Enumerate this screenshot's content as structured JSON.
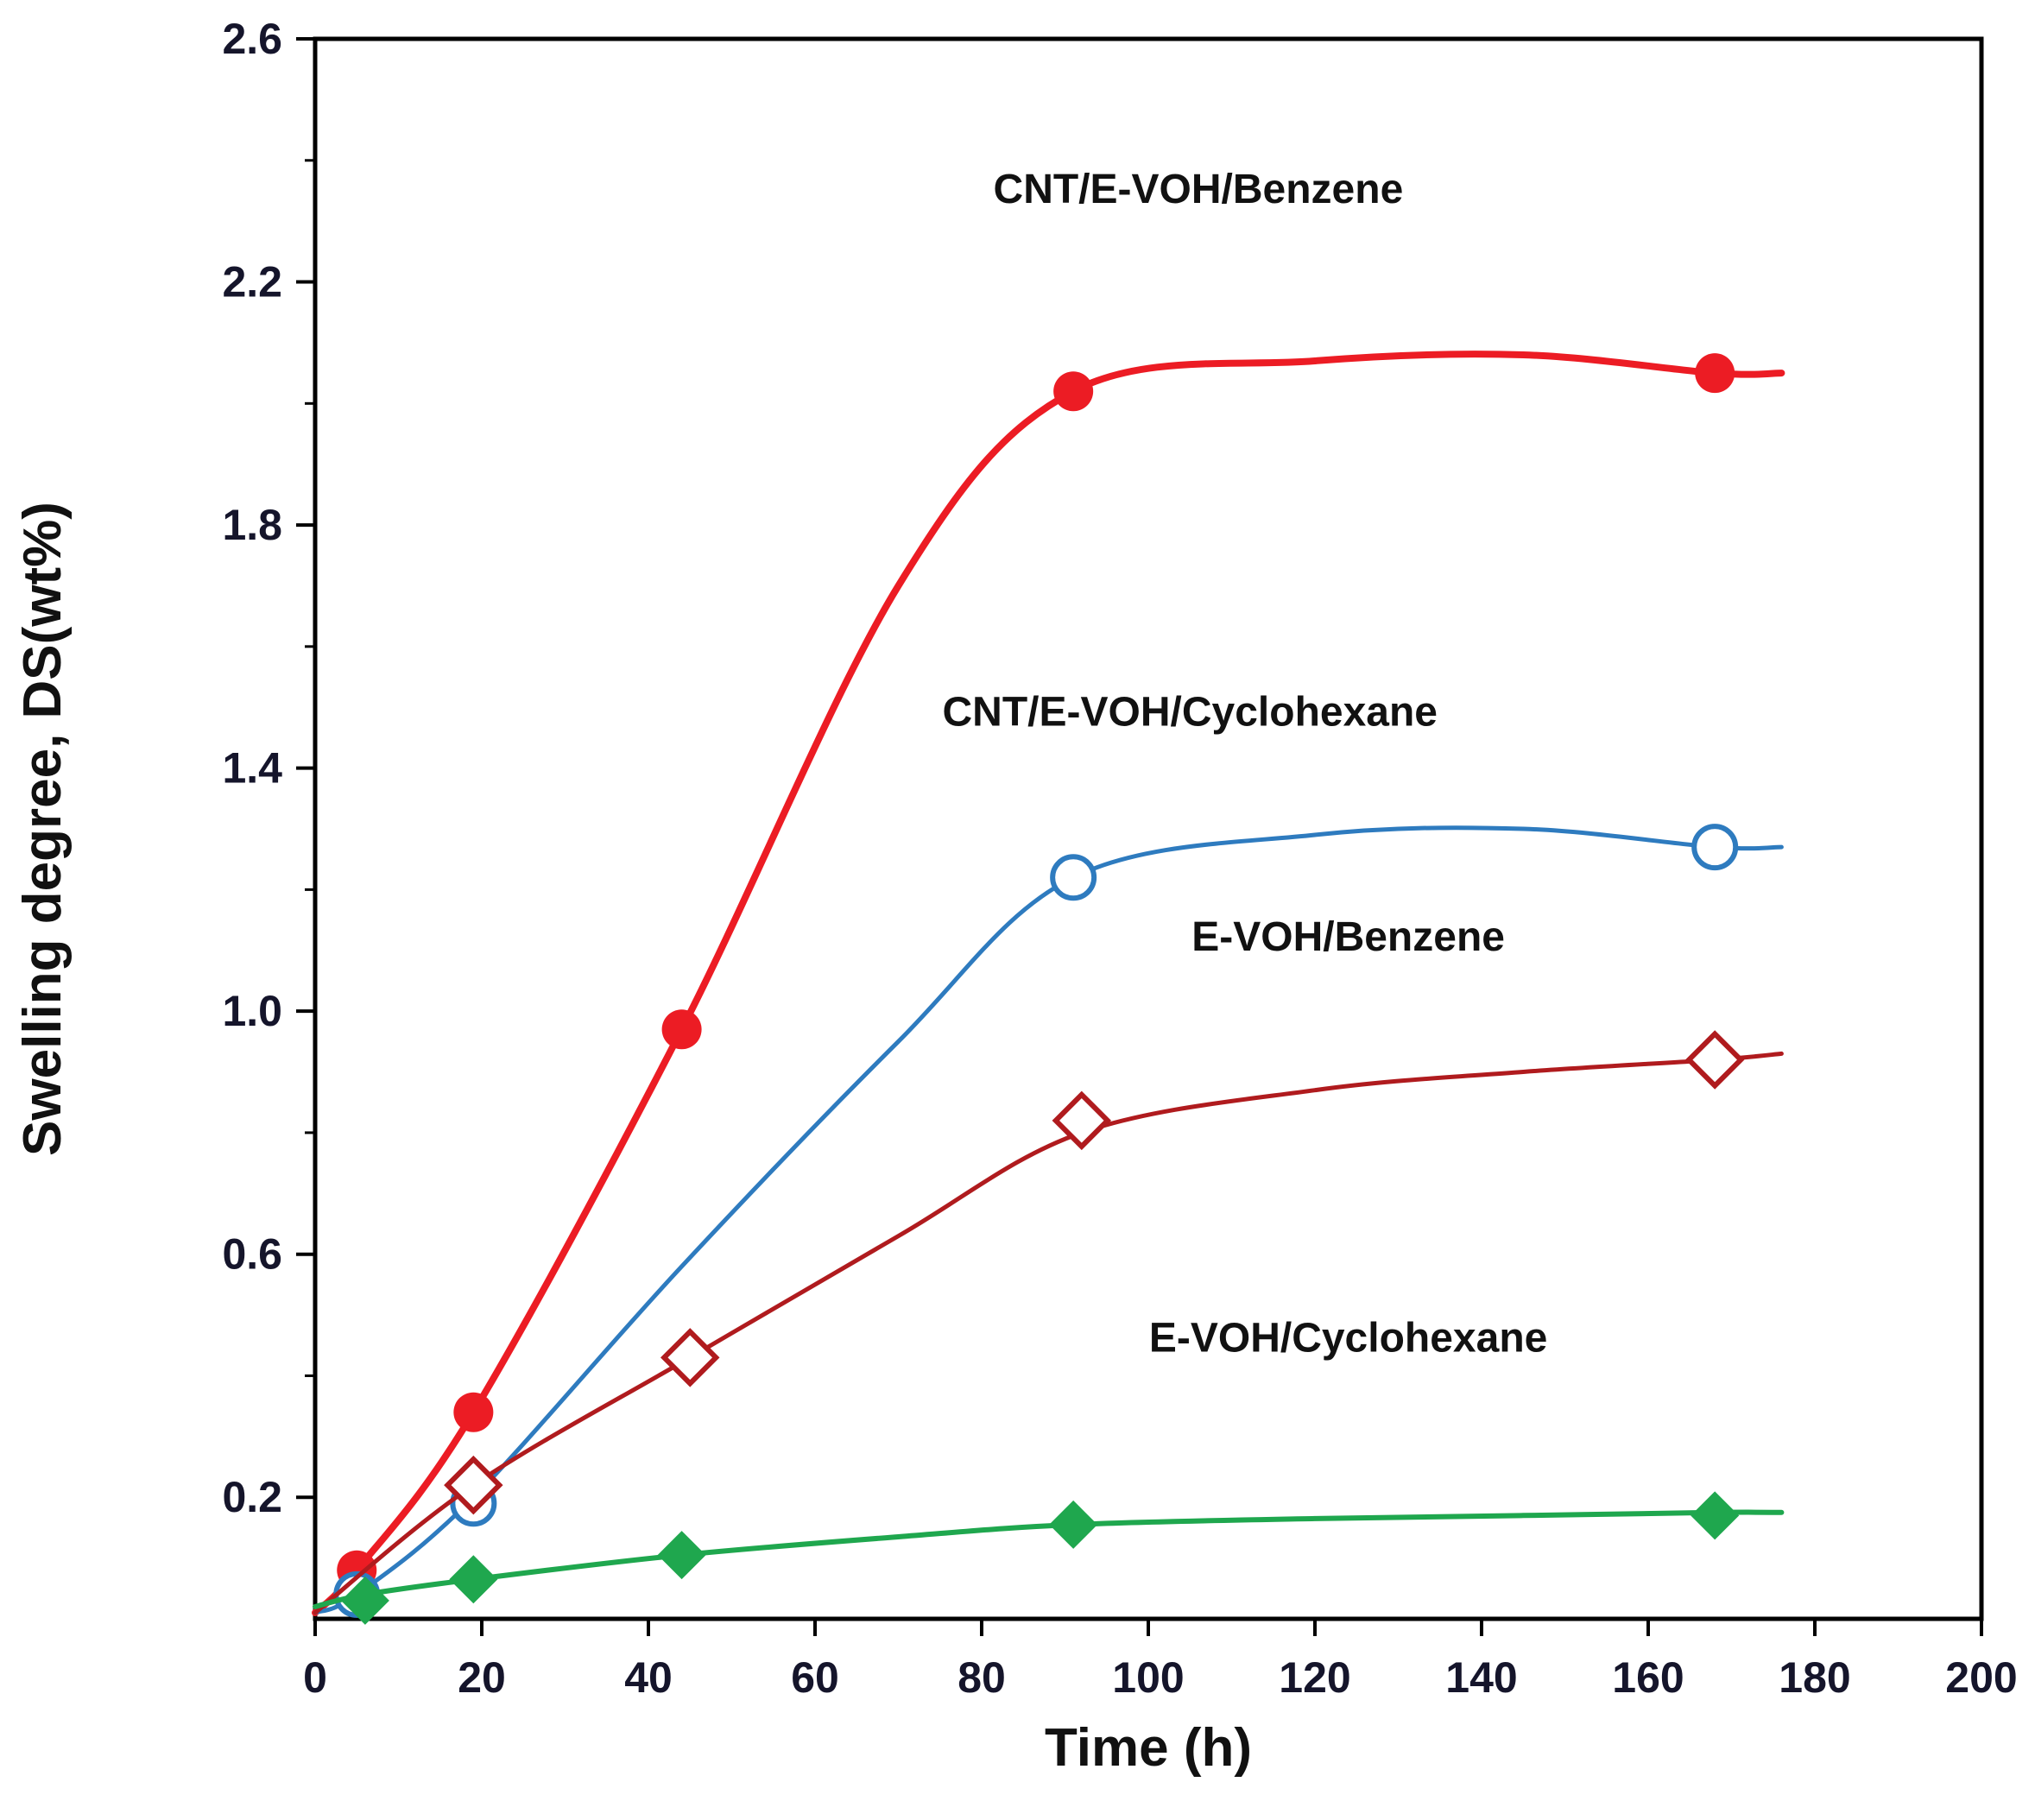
{
  "chart_data": {
    "type": "line",
    "title": "",
    "xlabel": "Time (h)",
    "ylabel": "Swelling degree, DS(wt%)",
    "xlim": [
      0,
      200
    ],
    "ylim": [
      0,
      2.6
    ],
    "x_ticks": [
      0,
      20,
      40,
      60,
      80,
      100,
      120,
      140,
      160,
      180,
      200
    ],
    "y_ticks_major": [
      0.2,
      0.6,
      1.0,
      1.4,
      1.8,
      2.2,
      2.6
    ],
    "y_ticks_minor": [
      0.4,
      0.8,
      1.2,
      1.6,
      2.0,
      2.4
    ],
    "grid": false,
    "legend_position": "inline-annotations",
    "frame_color": "#000000",
    "tick_label_color": "#15152b",
    "axis_label_color": "#111111",
    "annotation_color": "#111111",
    "series": [
      {
        "name": "CNT/E-VOH/Benzene",
        "color": "#ec1c24",
        "marker": "circle-filled",
        "marker_size": 23,
        "line_width": 8,
        "x": [
          5,
          19,
          44,
          91,
          168
        ],
        "y": [
          0.08,
          0.34,
          0.97,
          2.02,
          2.05
        ],
        "curve": [
          [
            0,
            0.01
          ],
          [
            5,
            0.08
          ],
          [
            19,
            0.34
          ],
          [
            44,
            0.97
          ],
          [
            70,
            1.7
          ],
          [
            91,
            2.02
          ],
          [
            120,
            2.07
          ],
          [
            145,
            2.08
          ],
          [
            168,
            2.05
          ],
          [
            176,
            2.05
          ]
        ],
        "label": "CNT/E-VOH/Benzene",
        "label_pos": {
          "x": 106,
          "y": 2.33
        }
      },
      {
        "name": "CNT/E-VOH/Cyclohexane",
        "color": "#2e7bbf",
        "marker": "circle-open",
        "marker_size": 24,
        "line_width": 5,
        "x": [
          5,
          19,
          91,
          168
        ],
        "y": [
          0.04,
          0.19,
          1.22,
          1.27
        ],
        "curve": [
          [
            0,
            0.01
          ],
          [
            5,
            0.04
          ],
          [
            19,
            0.2
          ],
          [
            44,
            0.58
          ],
          [
            70,
            0.95
          ],
          [
            91,
            1.22
          ],
          [
            120,
            1.29
          ],
          [
            145,
            1.3
          ],
          [
            168,
            1.27
          ],
          [
            176,
            1.27
          ]
        ],
        "label": "CNT/E-VOH/Cyclohexane",
        "label_pos": {
          "x": 105,
          "y": 1.47
        }
      },
      {
        "name": "E-VOH/Benzene",
        "color": "#b01b1e",
        "marker": "diamond-open",
        "marker_size": 30,
        "line_width": 5,
        "x": [
          19,
          45,
          92,
          168
        ],
        "y": [
          0.22,
          0.43,
          0.82,
          0.92
        ],
        "curve": [
          [
            0,
            0.01
          ],
          [
            19,
            0.22
          ],
          [
            45,
            0.43
          ],
          [
            70,
            0.63
          ],
          [
            92,
            0.8
          ],
          [
            120,
            0.87
          ],
          [
            145,
            0.9
          ],
          [
            168,
            0.92
          ],
          [
            176,
            0.93
          ]
        ],
        "label": "E-VOH/Benzene",
        "label_pos": {
          "x": 124,
          "y": 1.1
        }
      },
      {
        "name": "E-VOH/Cyclohexane",
        "color": "#1fa74e",
        "marker": "diamond-filled",
        "marker_size": 28,
        "line_width": 6,
        "x": [
          6,
          19,
          44,
          91,
          168
        ],
        "y": [
          0.03,
          0.065,
          0.105,
          0.155,
          0.17
        ],
        "curve": [
          [
            0,
            0.02
          ],
          [
            6,
            0.04
          ],
          [
            19,
            0.065
          ],
          [
            44,
            0.105
          ],
          [
            70,
            0.135
          ],
          [
            91,
            0.155
          ],
          [
            120,
            0.165
          ],
          [
            145,
            0.17
          ],
          [
            168,
            0.175
          ],
          [
            176,
            0.175
          ]
        ],
        "label": "E-VOH/Cyclohexane",
        "label_pos": {
          "x": 124,
          "y": 0.44
        }
      }
    ]
  }
}
